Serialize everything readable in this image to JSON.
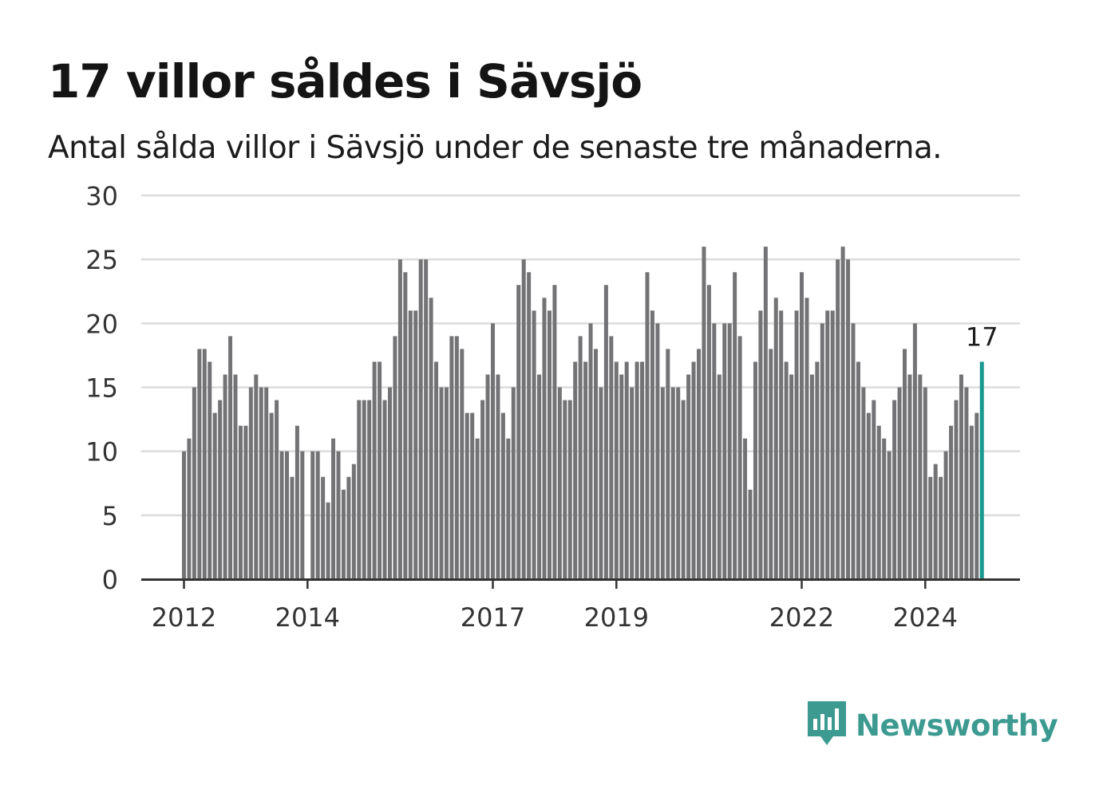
{
  "title": "17 villor såldes i Sävsjö",
  "subtitle": "Antal sålda villor i Sävsjö under de senaste tre månaderna.",
  "brand": {
    "name": "Newsworthy",
    "icon": "newsworthy-logo-icon",
    "color": "#3d9a91"
  },
  "colors": {
    "bar": "#737376",
    "highlight": "#18998f",
    "grid": "#dcdcdc",
    "axis": "#333333"
  },
  "chart_data": {
    "type": "bar",
    "ylim": [
      0,
      30
    ],
    "yticks": [
      0,
      5,
      10,
      15,
      20,
      25,
      30
    ],
    "xticks": [
      "2012",
      "2014",
      "2017",
      "2019",
      "2022",
      "2024"
    ],
    "xticks_index": [
      0,
      24,
      60,
      84,
      120,
      144
    ],
    "highlight_label": "17",
    "grid": true,
    "values": [
      10,
      11,
      15,
      18,
      18,
      17,
      13,
      14,
      16,
      19,
      16,
      12,
      12,
      15,
      16,
      15,
      15,
      13,
      14,
      10,
      10,
      8,
      12,
      10,
      0,
      10,
      10,
      8,
      6,
      11,
      10,
      7,
      8,
      9,
      14,
      14,
      14,
      17,
      17,
      14,
      15,
      19,
      25,
      24,
      21,
      21,
      25,
      25,
      22,
      17,
      15,
      15,
      19,
      19,
      18,
      13,
      13,
      11,
      14,
      16,
      20,
      16,
      13,
      11,
      15,
      23,
      25,
      24,
      21,
      16,
      22,
      21,
      23,
      15,
      14,
      14,
      17,
      19,
      17,
      20,
      18,
      15,
      23,
      19,
      17,
      16,
      17,
      15,
      17,
      17,
      24,
      21,
      20,
      15,
      18,
      15,
      15,
      14,
      16,
      17,
      18,
      26,
      23,
      20,
      16,
      20,
      20,
      24,
      19,
      11,
      7,
      17,
      21,
      26,
      18,
      22,
      21,
      17,
      16,
      21,
      24,
      22,
      16,
      17,
      20,
      21,
      21,
      25,
      26,
      25,
      20,
      17,
      15,
      13,
      14,
      12,
      11,
      10,
      14,
      15,
      18,
      16,
      20,
      16,
      15,
      8,
      9,
      8,
      10,
      12,
      14,
      16,
      15,
      12,
      13,
      17
    ]
  }
}
